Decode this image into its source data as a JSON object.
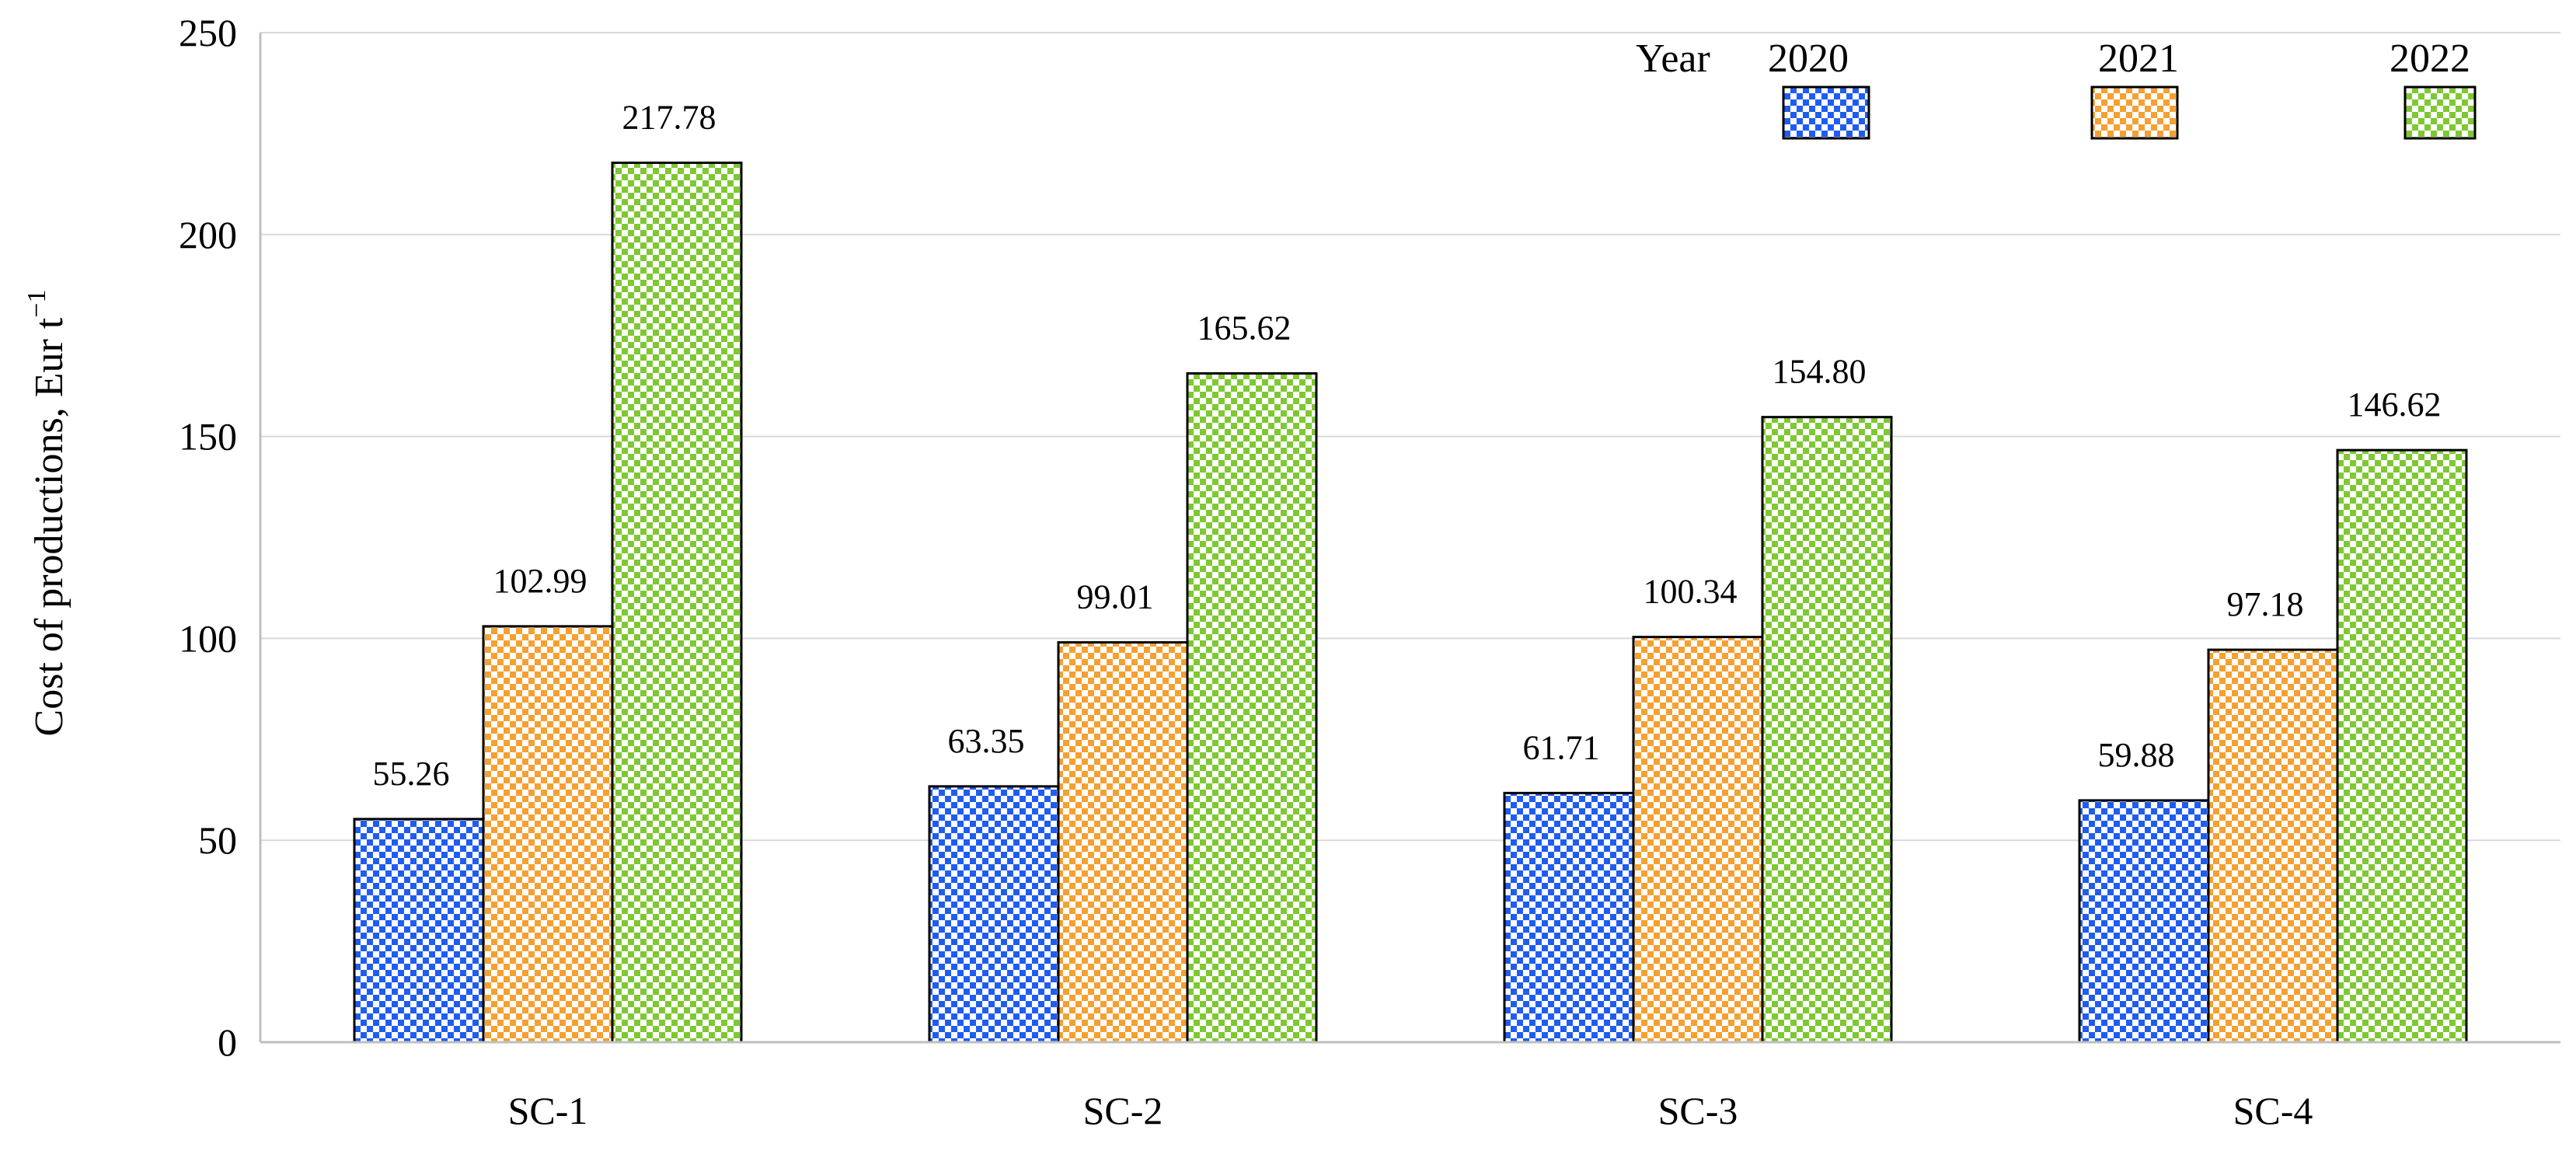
{
  "chart_data": {
    "type": "bar",
    "categories": [
      "SC-1",
      "SC-2",
      "SC-3",
      "SC-4"
    ],
    "series": [
      {
        "name": "2020",
        "values": [
          55.26,
          63.35,
          61.71,
          59.88
        ],
        "color": "#1f5cf0"
      },
      {
        "name": "2021",
        "values": [
          102.99,
          99.01,
          100.34,
          97.18
        ],
        "color": "#f5a031"
      },
      {
        "name": "2022",
        "values": [
          217.78,
          165.62,
          154.8,
          146.62
        ],
        "color": "#7ec832"
      }
    ],
    "data_labels": [
      [
        "55.26",
        "63.35",
        "61.71",
        "59.88"
      ],
      [
        "102.99",
        "99.01",
        "100.34",
        "97.18"
      ],
      [
        "217.78",
        "165.62",
        "154.80",
        "146.62"
      ]
    ],
    "ylim": [
      0,
      250
    ],
    "yticks": [
      0,
      50,
      100,
      150,
      200,
      250
    ],
    "ytick_labels": [
      "0",
      "50",
      "100",
      "150",
      "200",
      "250"
    ],
    "ylabel": "Cost of productions,   Eur t",
    "ylabel_sup": "−1",
    "xlabel": "",
    "legend_title": "Year",
    "legend_position": "top-right",
    "grid": true
  }
}
